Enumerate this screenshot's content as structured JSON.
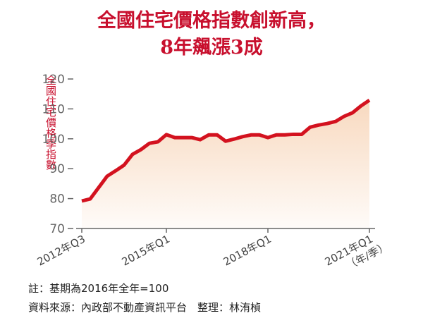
{
  "chart_data": {
    "type": "area",
    "title": "全國住宅價格指數創新高，",
    "subtitle": "8年飆漲3成",
    "y_label": "全國住宅價格季指數",
    "x_unit": "（年/季）",
    "notes": [
      "註：基期為2016年全年=100",
      "資料來源：內政部不動產資訊平台　整理：林洧楨"
    ],
    "categories": [
      "2012年Q3",
      null,
      null,
      null,
      null,
      null,
      null,
      null,
      null,
      null,
      "2015年Q1",
      null,
      null,
      null,
      null,
      null,
      null,
      null,
      null,
      null,
      null,
      null,
      "2018年Q1",
      null,
      null,
      null,
      null,
      null,
      null,
      null,
      null,
      null,
      null,
      null,
      "2021年Q1"
    ],
    "values": [
      79.2,
      79.9,
      83.7,
      87.5,
      89.3,
      91.2,
      94.8,
      96.4,
      98.5,
      99.0,
      101.4,
      100.4,
      100.4,
      100.4,
      99.7,
      101.3,
      101.3,
      99.2,
      99.9,
      100.7,
      101.3,
      101.3,
      100.4,
      101.3,
      101.3,
      101.5,
      101.5,
      103.9,
      104.6,
      105.1,
      105.8,
      107.5,
      108.7,
      111.0,
      112.9
    ],
    "color": "#d3121f",
    "area_color": "#f8d9bf",
    "ylim": [
      70,
      120
    ],
    "yticks": [
      70,
      80,
      90,
      100,
      110,
      120
    ]
  }
}
